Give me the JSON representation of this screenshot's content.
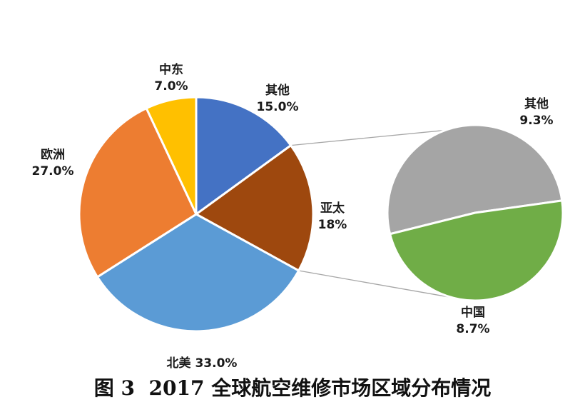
{
  "chart_data": {
    "type": "pie",
    "title": "图 3  2017 全球航空维修市场区域分布情况",
    "main_pie": {
      "slices": [
        {
          "name": "其他",
          "value": 15.0,
          "label": "15.0%",
          "color": "#4472C4"
        },
        {
          "name": "亚太",
          "value": 18.0,
          "label": "18%",
          "color": "#9E480E"
        },
        {
          "name": "北美",
          "value": 33.0,
          "label": "33.0%",
          "color": "#5B9BD5"
        },
        {
          "name": "欧洲",
          "value": 27.0,
          "label": "27.0%",
          "color": "#ED7D31"
        },
        {
          "name": "中东",
          "value": 7.0,
          "label": "7.0%",
          "color": "#FFC000"
        }
      ]
    },
    "secondary_pie": {
      "expands": "亚太",
      "slices": [
        {
          "name": "其他",
          "value": 9.3,
          "label": "9.3%",
          "color": "#A5A5A5"
        },
        {
          "name": "中国",
          "value": 8.7,
          "label": "8.7%",
          "color": "#70AD47"
        }
      ]
    },
    "legend": "none"
  }
}
